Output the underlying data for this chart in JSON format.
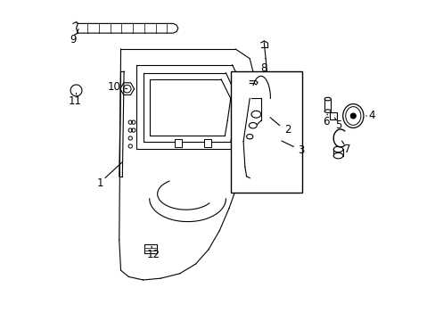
{
  "title": "",
  "bg_color": "#ffffff",
  "line_color": "#000000",
  "label_color": "#000000",
  "fig_width": 4.89,
  "fig_height": 3.6,
  "dpi": 100,
  "font_size_numbers": 8.5
}
